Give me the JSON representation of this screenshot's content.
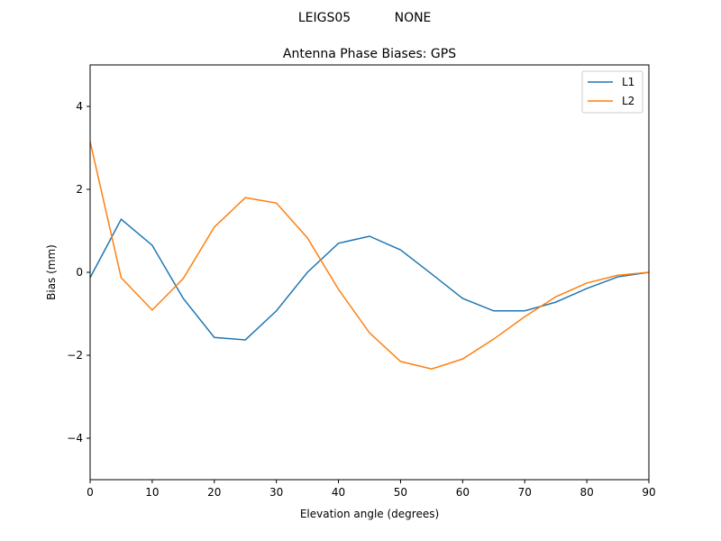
{
  "suptitle_left": "LEIGS05",
  "suptitle_right": "NONE",
  "chart_data": {
    "type": "line",
    "title": "Antenna Phase Biases: GPS",
    "xlabel": "Elevation angle (degrees)",
    "ylabel": "Bias (mm)",
    "xlim": [
      0,
      90
    ],
    "ylim": [
      -5,
      5
    ],
    "xticks": [
      0,
      10,
      20,
      30,
      40,
      50,
      60,
      70,
      80,
      90
    ],
    "yticks": [
      -4,
      -2,
      0,
      2,
      4
    ],
    "ytick_labels": [
      "−4",
      "−2",
      "0",
      "2",
      "4"
    ],
    "grid": false,
    "legend_position": "top-right",
    "x": [
      0,
      5,
      10,
      15,
      20,
      25,
      30,
      35,
      40,
      45,
      50,
      55,
      60,
      65,
      70,
      75,
      80,
      85,
      90
    ],
    "series": [
      {
        "name": "L1",
        "color": "#1f77b4",
        "values": [
          -0.13,
          1.28,
          0.65,
          -0.63,
          -1.57,
          -1.63,
          -0.93,
          0.0,
          0.7,
          0.87,
          0.54,
          -0.04,
          -0.63,
          -0.93,
          -0.93,
          -0.72,
          -0.39,
          -0.11,
          0.0
        ]
      },
      {
        "name": "L2",
        "color": "#ff7f0e",
        "values": [
          3.15,
          -0.13,
          -0.91,
          -0.15,
          1.09,
          1.8,
          1.67,
          0.83,
          -0.41,
          -1.46,
          -2.15,
          -2.33,
          -2.09,
          -1.61,
          -1.07,
          -0.59,
          -0.26,
          -0.07,
          0.0
        ]
      }
    ]
  }
}
